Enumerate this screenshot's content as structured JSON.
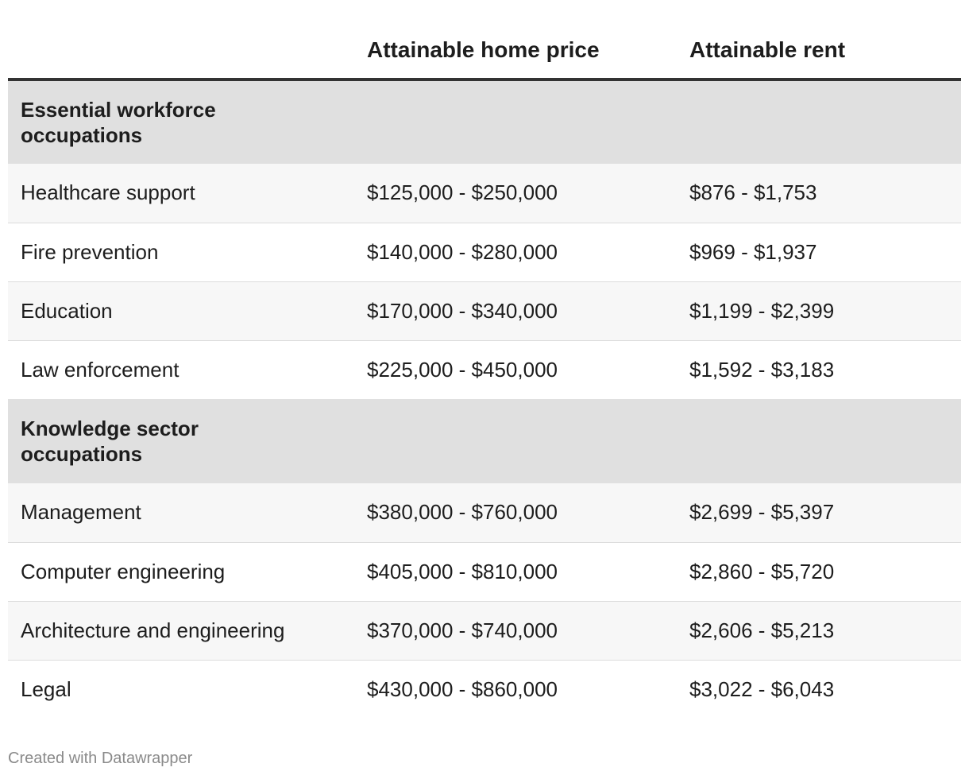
{
  "chart_data": {
    "type": "table",
    "columns": [
      "",
      "Attainable home price",
      "Attainable rent"
    ],
    "groups": [
      {
        "label": "Essential workforce occupations",
        "rows": [
          {
            "occupation": "Healthcare support",
            "home_price": "$125,000 - $250,000",
            "rent": "$876 - $1,753"
          },
          {
            "occupation": "Fire prevention",
            "home_price": "$140,000 - $280,000",
            "rent": "$969 - $1,937"
          },
          {
            "occupation": "Education",
            "home_price": "$170,000 - $340,000",
            "rent": "$1,199 - $2,399"
          },
          {
            "occupation": "Law enforcement",
            "home_price": "$225,000 - $450,000",
            "rent": "$1,592 - $3,183"
          }
        ]
      },
      {
        "label": "Knowledge sector occupations",
        "rows": [
          {
            "occupation": "Management",
            "home_price": "$380,000 - $760,000",
            "rent": "$2,699 - $5,397"
          },
          {
            "occupation": "Computer engineering",
            "home_price": "$405,000 - $810,000",
            "rent": "$2,860 - $5,720"
          },
          {
            "occupation": "Architecture and engineering",
            "home_price": "$370,000 - $740,000",
            "rent": "$2,606 - $5,213"
          },
          {
            "occupation": "Legal",
            "home_price": "$430,000 - $860,000",
            "rent": "$3,022 - $6,043"
          }
        ]
      }
    ]
  },
  "footer": {
    "credit": "Created with Datawrapper"
  }
}
